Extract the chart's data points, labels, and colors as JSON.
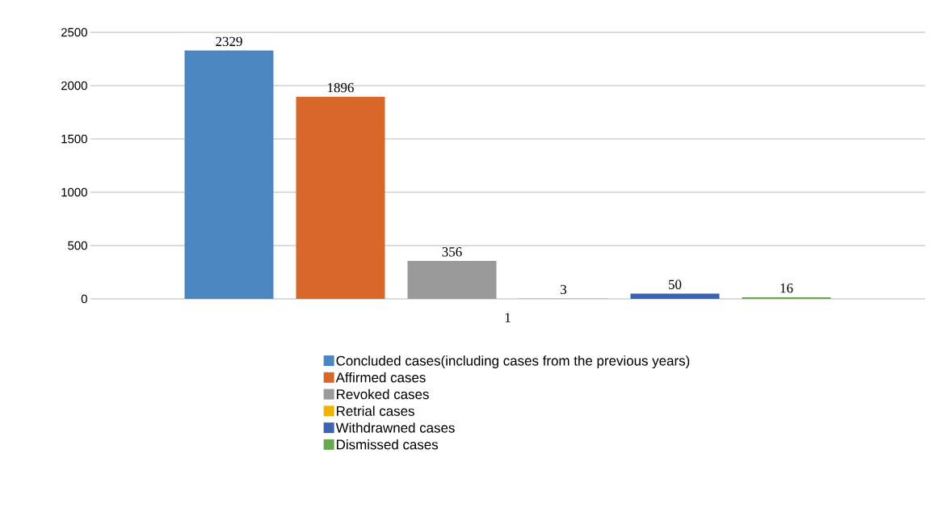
{
  "chart_data": {
    "type": "bar",
    "categories": [
      "1"
    ],
    "series": [
      {
        "name": "Concluded cases(including cases from the previous years)",
        "color": "#4a86c0",
        "values": [
          2329
        ]
      },
      {
        "name": "Affirmed cases",
        "color": "#d9672a",
        "values": [
          1896
        ]
      },
      {
        "name": "Revoked cases",
        "color": "#9a9a9a",
        "values": [
          356
        ]
      },
      {
        "name": "Retrial cases",
        "color": "#f0b400",
        "values": [
          3
        ]
      },
      {
        "name": "Withdrawned cases",
        "color": "#3c64b4",
        "values": [
          50
        ]
      },
      {
        "name": "Dismissed cases",
        "color": "#6aa84f",
        "values": [
          16
        ]
      }
    ],
    "ylim": [
      0,
      2500
    ],
    "yticks": [
      0,
      500,
      1000,
      1500,
      2000,
      2500
    ],
    "grid": "y",
    "legend": "bottom",
    "data_labels": true
  }
}
